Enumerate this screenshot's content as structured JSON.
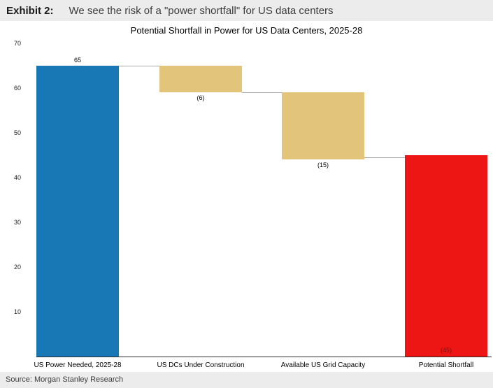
{
  "header": {
    "exhibit_label": "Exhibit 2:",
    "title": "We see the risk of a \"power shortfall\" for US data centers"
  },
  "source": "Source: Morgan Stanley Research",
  "chart_data": {
    "type": "waterfall",
    "title": "Potential Shortfall in Power for US Data Centers, 2025-28",
    "xlabel": "",
    "ylabel": "",
    "ylim": [
      0,
      70
    ],
    "yticks": [
      70,
      60,
      50,
      40,
      30,
      20,
      10
    ],
    "grid": false,
    "legend": "none",
    "categories": [
      "US Power Needed, 2025-28",
      "US DCs Under Construction",
      "Available US Grid Capacity",
      "Potential Shortfall"
    ],
    "bars": [
      {
        "category": "US Power Needed, 2025-28",
        "start": 0,
        "end": 65,
        "value": 65,
        "label": "65",
        "label_position": "above",
        "color": "#1878b6",
        "label_color": "#000000"
      },
      {
        "category": "US DCs Under Construction",
        "start": 59,
        "end": 65,
        "value": -6,
        "label": "(6)",
        "label_position": "below",
        "color": "#e2c57b",
        "label_color": "#000000"
      },
      {
        "category": "Available US Grid Capacity",
        "start": 44,
        "end": 59,
        "value": -15,
        "label": "(15)",
        "label_position": "below",
        "color": "#e2c57b",
        "label_color": "#000000"
      },
      {
        "category": "Potential Shortfall",
        "start": 0,
        "end": 45,
        "value": 45,
        "label": "(45)",
        "label_position": "inside-bottom",
        "color": "#ee1515",
        "label_color": "#7f1010"
      }
    ],
    "connectors": [
      {
        "level": 65,
        "from_bar": 0,
        "to_bar": 1
      },
      {
        "level": 59,
        "from_bar": 1,
        "to_bar": 2
      },
      {
        "level": 44.5,
        "from_bar": 2,
        "to_bar": 3
      }
    ],
    "colors": {
      "increase": "#1878b6",
      "decrease": "#e2c57b",
      "total": "#ee1515",
      "axis": "#2a2a2a",
      "connector": "#aaaaaa"
    }
  }
}
